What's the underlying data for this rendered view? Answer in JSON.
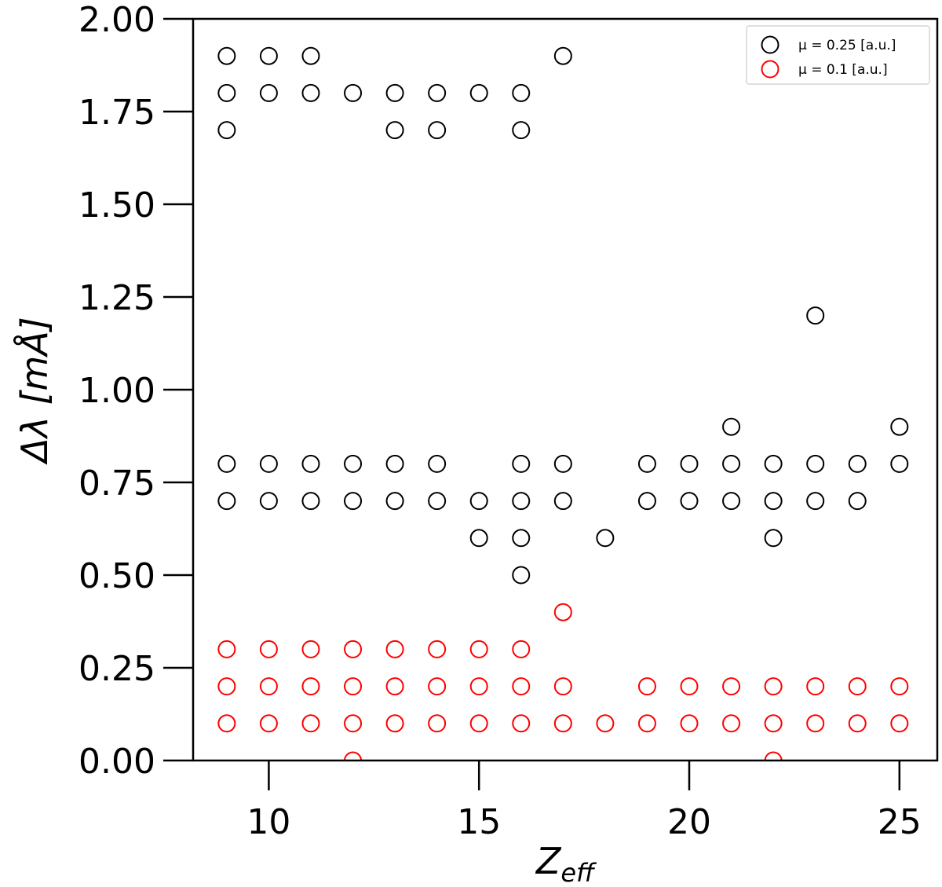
{
  "chart_data": {
    "type": "scatter",
    "title": "",
    "xlabel": "Z",
    "xlabel_sub": "eff",
    "ylabel": "Δλ [mÅ]",
    "xlim": [
      8.2,
      25.9
    ],
    "ylim": [
      0.0,
      2.0
    ],
    "xticks": [
      10,
      15,
      20,
      25
    ],
    "xtick_labels": [
      "10",
      "15",
      "20",
      "25"
    ],
    "yticks": [
      0.0,
      0.25,
      0.5,
      0.75,
      1.0,
      1.25,
      1.5,
      1.75,
      2.0
    ],
    "ytick_labels": [
      "0.00",
      "0.25",
      "0.50",
      "0.75",
      "1.00",
      "1.25",
      "1.50",
      "1.75",
      "2.00"
    ],
    "grid": false,
    "legend_position": "top-right",
    "marker": "open-circle",
    "series": [
      {
        "name": "μ = 0.25 [a.u.]",
        "color": "#000000",
        "points": [
          [
            9,
            1.9
          ],
          [
            9,
            1.8
          ],
          [
            9,
            1.7
          ],
          [
            9,
            0.8
          ],
          [
            9,
            0.7
          ],
          [
            10,
            1.9
          ],
          [
            10,
            1.8
          ],
          [
            10,
            0.8
          ],
          [
            10,
            0.7
          ],
          [
            11,
            1.9
          ],
          [
            11,
            1.8
          ],
          [
            11,
            0.8
          ],
          [
            11,
            0.7
          ],
          [
            12,
            1.8
          ],
          [
            12,
            0.8
          ],
          [
            12,
            0.7
          ],
          [
            13,
            1.8
          ],
          [
            13,
            1.7
          ],
          [
            13,
            0.8
          ],
          [
            13,
            0.7
          ],
          [
            14,
            1.8
          ],
          [
            14,
            1.7
          ],
          [
            14,
            0.8
          ],
          [
            14,
            0.7
          ],
          [
            15,
            1.8
          ],
          [
            15,
            0.7
          ],
          [
            15,
            0.6
          ],
          [
            16,
            1.8
          ],
          [
            16,
            1.7
          ],
          [
            16,
            0.8
          ],
          [
            16,
            0.7
          ],
          [
            16,
            0.6
          ],
          [
            16,
            0.5
          ],
          [
            17,
            1.9
          ],
          [
            17,
            0.8
          ],
          [
            17,
            0.7
          ],
          [
            18,
            0.6
          ],
          [
            19,
            0.8
          ],
          [
            19,
            0.7
          ],
          [
            20,
            0.8
          ],
          [
            20,
            0.7
          ],
          [
            21,
            0.9
          ],
          [
            21,
            0.8
          ],
          [
            21,
            0.7
          ],
          [
            22,
            0.8
          ],
          [
            22,
            0.7
          ],
          [
            22,
            0.6
          ],
          [
            23,
            1.2
          ],
          [
            23,
            0.8
          ],
          [
            23,
            0.7
          ],
          [
            24,
            0.8
          ],
          [
            24,
            0.7
          ],
          [
            25,
            0.9
          ],
          [
            25,
            0.8
          ]
        ]
      },
      {
        "name": "μ = 0.1 [a.u.]",
        "color": "#ff0000",
        "points": [
          [
            9,
            0.3
          ],
          [
            9,
            0.2
          ],
          [
            9,
            0.1
          ],
          [
            10,
            0.3
          ],
          [
            10,
            0.2
          ],
          [
            10,
            0.1
          ],
          [
            11,
            0.3
          ],
          [
            11,
            0.2
          ],
          [
            11,
            0.1
          ],
          [
            12,
            0.3
          ],
          [
            12,
            0.2
          ],
          [
            12,
            0.1
          ],
          [
            12,
            0.0
          ],
          [
            13,
            0.3
          ],
          [
            13,
            0.2
          ],
          [
            13,
            0.1
          ],
          [
            14,
            0.3
          ],
          [
            14,
            0.2
          ],
          [
            14,
            0.1
          ],
          [
            15,
            0.3
          ],
          [
            15,
            0.2
          ],
          [
            15,
            0.1
          ],
          [
            16,
            0.3
          ],
          [
            16,
            0.2
          ],
          [
            16,
            0.1
          ],
          [
            17,
            0.4
          ],
          [
            17,
            0.2
          ],
          [
            17,
            0.1
          ],
          [
            18,
            0.1
          ],
          [
            19,
            0.2
          ],
          [
            19,
            0.1
          ],
          [
            20,
            0.2
          ],
          [
            20,
            0.1
          ],
          [
            21,
            0.2
          ],
          [
            21,
            0.1
          ],
          [
            22,
            0.2
          ],
          [
            22,
            0.1
          ],
          [
            22,
            0.0
          ],
          [
            23,
            0.2
          ],
          [
            23,
            0.1
          ],
          [
            24,
            0.2
          ],
          [
            24,
            0.1
          ],
          [
            25,
            0.2
          ],
          [
            25,
            0.1
          ]
        ]
      }
    ]
  }
}
